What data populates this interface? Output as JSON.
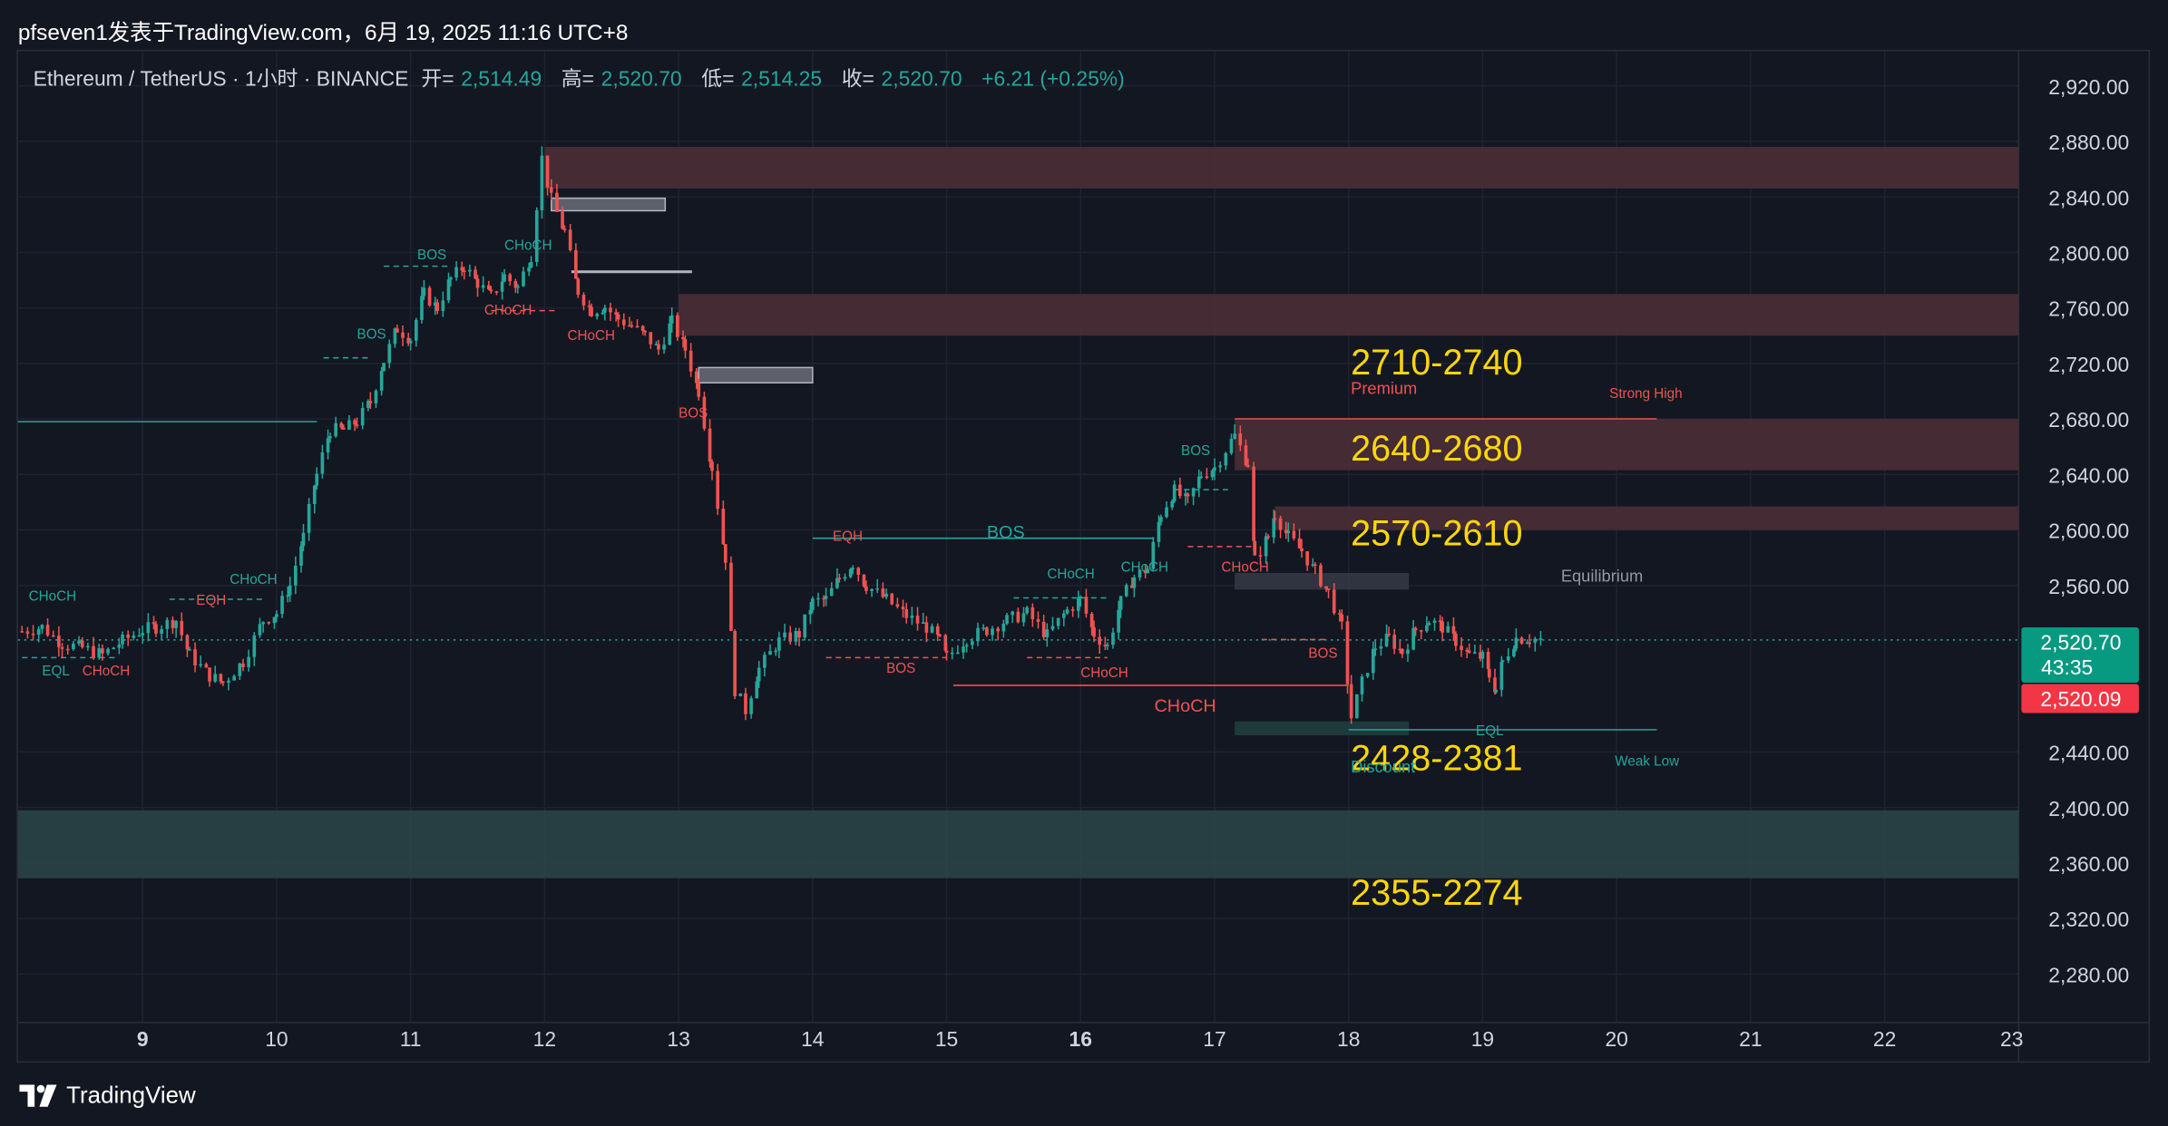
{
  "post_header": {
    "author": "pfseven1",
    "published_text": "发表于TradingView.com，6月 19, 2025 11:16 UTC+8"
  },
  "legend": {
    "symbol": "Ethereum / TetherUS · 1小时 · BINANCE",
    "open_label": "开=",
    "open": "2,514.49",
    "high_label": "高=",
    "high": "2,520.70",
    "low_label": "低=",
    "low": "2,514.25",
    "close_label": "收=",
    "close": "2,520.70",
    "change": "+6.21 (+0.25%)"
  },
  "price_tag": {
    "last": "2,520.70",
    "countdown": "43:35",
    "bid": "2,520.09"
  },
  "footer": {
    "brand": "TradingView",
    "logo_icon": "tradingview-logo-icon"
  },
  "colors": {
    "bg": "#131722",
    "up": "#26a69a",
    "down": "#ef5350",
    "supply_zone": "#4a2d36",
    "demand_zone": "#2a4447",
    "level_text": "#ffd60a"
  },
  "chart_data": {
    "type": "candlestick",
    "timeframe": "1小时",
    "y_axis_ticks": [
      "2,920.00",
      "2,880.00",
      "2,840.00",
      "2,800.00",
      "2,760.00",
      "2,720.00",
      "2,680.00",
      "2,640.00",
      "2,600.00",
      "2,560.00",
      "2,440.00",
      "2,400.00",
      "2,360.00",
      "2,320.00",
      "2,280.00"
    ],
    "y_tick_values": [
      2920,
      2880,
      2840,
      2800,
      2760,
      2720,
      2680,
      2640,
      2600,
      2560,
      2440,
      2400,
      2360,
      2320,
      2280
    ],
    "x_axis_ticks": [
      {
        "label": "9",
        "day": 9,
        "bold": true
      },
      {
        "label": "10",
        "day": 10
      },
      {
        "label": "11",
        "day": 11
      },
      {
        "label": "12",
        "day": 12
      },
      {
        "label": "13",
        "day": 13
      },
      {
        "label": "14",
        "day": 14
      },
      {
        "label": "15",
        "day": 15
      },
      {
        "label": "16",
        "day": 16,
        "bold": true
      },
      {
        "label": "17",
        "day": 17
      },
      {
        "label": "18",
        "day": 18
      },
      {
        "label": "19",
        "day": 19
      },
      {
        "label": "20",
        "day": 20
      },
      {
        "label": "21",
        "day": 21
      },
      {
        "label": "22",
        "day": 22
      },
      {
        "label": "23",
        "day": 23
      }
    ],
    "ylim": [
      2245,
      2945
    ],
    "xlim_days": [
      8.07,
      23.0
    ],
    "last_price": 2520.7,
    "ohlc_path": [
      [
        8.1,
        2527
      ],
      [
        8.25,
        2530
      ],
      [
        8.4,
        2518
      ],
      [
        8.55,
        2515
      ],
      [
        8.7,
        2510
      ],
      [
        8.85,
        2520
      ],
      [
        9.0,
        2528
      ],
      [
        9.1,
        2530
      ],
      [
        9.25,
        2535
      ],
      [
        9.35,
        2510
      ],
      [
        9.5,
        2495
      ],
      [
        9.6,
        2490
      ],
      [
        9.75,
        2505
      ],
      [
        9.9,
        2535
      ],
      [
        10.0,
        2540
      ],
      [
        10.1,
        2560
      ],
      [
        10.2,
        2595
      ],
      [
        10.3,
        2640
      ],
      [
        10.4,
        2672
      ],
      [
        10.5,
        2672
      ],
      [
        10.6,
        2678
      ],
      [
        10.7,
        2692
      ],
      [
        10.8,
        2722
      ],
      [
        10.9,
        2745
      ],
      [
        11.0,
        2738
      ],
      [
        11.1,
        2770
      ],
      [
        11.2,
        2760
      ],
      [
        11.3,
        2781
      ],
      [
        11.4,
        2790
      ],
      [
        11.5,
        2778
      ],
      [
        11.6,
        2768
      ],
      [
        11.7,
        2783
      ],
      [
        11.8,
        2775
      ],
      [
        11.9,
        2798
      ],
      [
        11.98,
        2868
      ],
      [
        12.05,
        2838
      ],
      [
        12.15,
        2815
      ],
      [
        12.25,
        2772
      ],
      [
        12.35,
        2758
      ],
      [
        12.45,
        2761
      ],
      [
        12.55,
        2752
      ],
      [
        12.65,
        2747
      ],
      [
        12.75,
        2740
      ],
      [
        12.85,
        2730
      ],
      [
        12.95,
        2750
      ],
      [
        13.05,
        2730
      ],
      [
        13.15,
        2700
      ],
      [
        13.25,
        2645
      ],
      [
        13.35,
        2580
      ],
      [
        13.42,
        2485
      ],
      [
        13.5,
        2470
      ],
      [
        13.6,
        2500
      ],
      [
        13.75,
        2520
      ],
      [
        13.9,
        2525
      ],
      [
        14.0,
        2548
      ],
      [
        14.1,
        2550
      ],
      [
        14.2,
        2565
      ],
      [
        14.3,
        2576
      ],
      [
        14.4,
        2560
      ],
      [
        14.55,
        2550
      ],
      [
        14.7,
        2538
      ],
      [
        14.85,
        2530
      ],
      [
        14.95,
        2520
      ],
      [
        15.0,
        2508
      ],
      [
        15.15,
        2522
      ],
      [
        15.3,
        2528
      ],
      [
        15.45,
        2535
      ],
      [
        15.6,
        2540
      ],
      [
        15.75,
        2524
      ],
      [
        15.9,
        2542
      ],
      [
        16.0,
        2550
      ],
      [
        16.1,
        2525
      ],
      [
        16.2,
        2516
      ],
      [
        16.3,
        2548
      ],
      [
        16.4,
        2566
      ],
      [
        16.5,
        2572
      ],
      [
        16.6,
        2612
      ],
      [
        16.7,
        2628
      ],
      [
        16.8,
        2620
      ],
      [
        16.9,
        2640
      ],
      [
        17.0,
        2645
      ],
      [
        17.15,
        2668
      ],
      [
        17.25,
        2648
      ],
      [
        17.3,
        2578
      ],
      [
        17.4,
        2595
      ],
      [
        17.45,
        2612
      ],
      [
        17.55,
        2595
      ],
      [
        17.65,
        2585
      ],
      [
        17.75,
        2570
      ],
      [
        17.85,
        2555
      ],
      [
        17.95,
        2530
      ],
      [
        18.02,
        2465
      ],
      [
        18.1,
        2490
      ],
      [
        18.2,
        2516
      ],
      [
        18.3,
        2522
      ],
      [
        18.4,
        2512
      ],
      [
        18.5,
        2528
      ],
      [
        18.6,
        2535
      ],
      [
        18.7,
        2530
      ],
      [
        18.8,
        2520
      ],
      [
        18.9,
        2510
      ],
      [
        19.0,
        2508
      ],
      [
        19.05,
        2495
      ],
      [
        19.1,
        2485
      ],
      [
        19.15,
        2505
      ],
      [
        19.25,
        2522
      ],
      [
        19.35,
        2522
      ],
      [
        19.45,
        2520.7
      ]
    ],
    "price_zones": [
      {
        "kind": "supply",
        "y1": 2876,
        "y2": 2846,
        "from_day": 12.0,
        "to_day": 23
      },
      {
        "kind": "supply",
        "y1": 2770,
        "y2": 2740,
        "from_day": 13.0,
        "to_day": 23
      },
      {
        "kind": "supply",
        "y1": 2680,
        "y2": 2643,
        "from_day": 17.15,
        "to_day": 23
      },
      {
        "kind": "supply",
        "y1": 2617,
        "y2": 2600,
        "from_day": 17.45,
        "to_day": 23
      },
      {
        "kind": "equilibrium",
        "y1": 2569,
        "y2": 2557,
        "from_day": 17.15,
        "to_day": 18.45
      },
      {
        "kind": "discount",
        "y1": 2462,
        "y2": 2452,
        "from_day": 17.15,
        "to_day": 18.45
      },
      {
        "kind": "demand",
        "y1": 2398,
        "y2": 2349,
        "from_day": 8.07,
        "to_day": 23
      }
    ],
    "order_blocks": [
      {
        "y1": 2839,
        "y2": 2830,
        "from_day": 12.05,
        "to_day": 12.9
      },
      {
        "y1": 2717,
        "y2": 2706,
        "from_day": 13.15,
        "to_day": 14.0
      }
    ],
    "level_texts": [
      "2710-2740",
      "2640-2680",
      "2570-2610",
      "2428-2381",
      "2355-2274"
    ],
    "level_text_prices": [
      2712,
      2650,
      2589,
      2427,
      2330
    ],
    "zone_labels": {
      "premium": "Premium",
      "strong_high": "Strong High",
      "equilibrium": "Equilibrium",
      "discount": "Discount",
      "weak_low": "Weak Low"
    },
    "structure_labels": [
      {
        "text": "BOS",
        "day": 11.05,
        "price": 2795,
        "color": "up"
      },
      {
        "text": "CHoCH",
        "day": 11.7,
        "price": 2802,
        "color": "up"
      },
      {
        "text": "CHoCH",
        "day": 11.55,
        "price": 2755,
        "color": "down"
      },
      {
        "text": "CHoCH",
        "day": 12.17,
        "price": 2737,
        "color": "down"
      },
      {
        "text": "BOS",
        "day": 10.6,
        "price": 2738,
        "color": "up"
      },
      {
        "text": "BOS",
        "day": 13.0,
        "price": 2681,
        "color": "down"
      },
      {
        "text": "EQH",
        "day": 9.4,
        "price": 2546,
        "color": "down"
      },
      {
        "text": "CHoCH",
        "day": 8.15,
        "price": 2549,
        "color": "up"
      },
      {
        "text": "CHoCH",
        "day": 9.65,
        "price": 2561,
        "color": "up"
      },
      {
        "text": "EQL",
        "day": 8.25,
        "price": 2495,
        "color": "up"
      },
      {
        "text": "CHoCH",
        "day": 8.55,
        "price": 2495,
        "color": "down"
      },
      {
        "text": "EQH",
        "day": 14.15,
        "price": 2592,
        "color": "down"
      },
      {
        "text": "BOS",
        "day": 15.3,
        "price": 2594,
        "color": "up",
        "size": "large"
      },
      {
        "text": "CHoCH",
        "day": 15.75,
        "price": 2565,
        "color": "up"
      },
      {
        "text": "CHoCH",
        "day": 16.3,
        "price": 2570,
        "color": "up"
      },
      {
        "text": "BOS",
        "day": 14.55,
        "price": 2497,
        "color": "down"
      },
      {
        "text": "CHoCH",
        "day": 16.0,
        "price": 2494,
        "color": "down"
      },
      {
        "text": "CHoCH",
        "day": 16.55,
        "price": 2469,
        "color": "down",
        "size": "large"
      },
      {
        "text": "BOS",
        "day": 16.75,
        "price": 2654,
        "color": "up"
      },
      {
        "text": "CHoCH",
        "day": 17.05,
        "price": 2570,
        "color": "down"
      },
      {
        "text": "BOS",
        "day": 17.7,
        "price": 2508,
        "color": "down"
      },
      {
        "text": "EQL",
        "day": 18.95,
        "price": 2452,
        "color": "up"
      }
    ]
  }
}
